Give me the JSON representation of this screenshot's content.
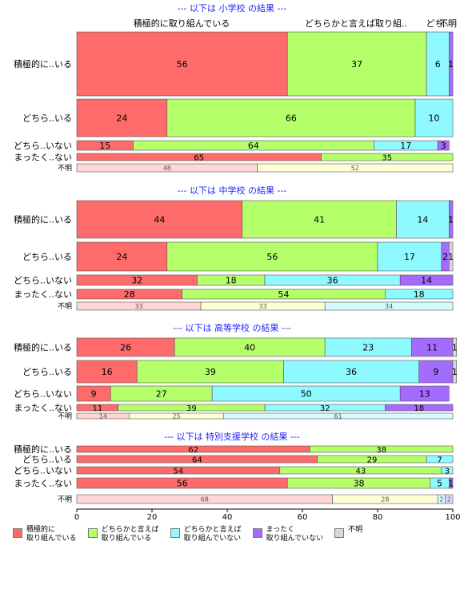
{
  "chart_data": {
    "type": "bar",
    "orientation": "horizontal",
    "stacked": true,
    "xlim": [
      0,
      100
    ],
    "x_ticks": [
      0,
      20,
      40,
      60,
      80,
      100
    ],
    "top_labels": [
      "積極的に取り組んでいる",
      "どちらかと言えば取り組..",
      "どち..",
      "不明"
    ],
    "legend": [
      {
        "label": "積極的に\n取り組んでいる",
        "color": "#ff6b6b"
      },
      {
        "label": "どちらかと言えば\n取り組んでいる",
        "color": "#b5ff6b"
      },
      {
        "label": "どちらかと言えば\n取り組んでいない",
        "color": "#8ef9ff"
      },
      {
        "label": "まったく\n取り組んでいない",
        "color": "#a46bff"
      },
      {
        "label": "不明",
        "color": "#d9d9d9"
      }
    ],
    "series_colors": [
      "#ff6b6b",
      "#b5ff6b",
      "#8ef9ff",
      "#a46bff",
      "#d9d9d9"
    ],
    "unknown_colors": [
      "#ffd6d6",
      "#ffffd4",
      "#d6fbff",
      "#e8d6ff",
      "#eeeeee"
    ],
    "panels": [
      {
        "title": "--- 以下は 小学校 の結果 ---",
        "rows": [
          {
            "label": "積極的に..いる",
            "values": [
              56,
              37,
              6,
              1
            ]
          },
          {
            "label": "どちら..いる",
            "values": [
              24,
              66,
              10
            ]
          },
          {
            "label": "どちら..いない",
            "values": [
              15,
              64,
              17,
              3
            ]
          },
          {
            "label": "まったく..ない",
            "values": [
              65,
              35
            ]
          },
          {
            "label": "不明",
            "values": [
              48,
              52
            ]
          }
        ]
      },
      {
        "title": "--- 以下は 中学校 の結果 ---",
        "rows": [
          {
            "label": "積極的に..いる",
            "values": [
              44,
              41,
              14,
              1
            ]
          },
          {
            "label": "どちら..いる",
            "values": [
              24,
              56,
              17,
              2,
              1
            ]
          },
          {
            "label": "どちら..いない",
            "values": [
              32,
              18,
              36,
              14
            ]
          },
          {
            "label": "まったく..ない",
            "values": [
              28,
              54,
              18
            ]
          },
          {
            "label": "不明",
            "values": [
              33,
              33,
              34
            ]
          }
        ]
      },
      {
        "title": "--- 以下は 高等学校 の結果 ---",
        "rows": [
          {
            "label": "積極的に..いる",
            "values": [
              26,
              40,
              23,
              11,
              1
            ]
          },
          {
            "label": "どちら..いる",
            "values": [
              16,
              39,
              36,
              9,
              1
            ]
          },
          {
            "label": "どちら..いない",
            "values": [
              9,
              27,
              50,
              13
            ]
          },
          {
            "label": "まったく..ない",
            "values": [
              11,
              39,
              32,
              18
            ]
          },
          {
            "label": "不明",
            "values": [
              14,
              25,
              61
            ]
          }
        ]
      },
      {
        "title": "--- 以下は 特別支援学校 の結果 ---",
        "rows": [
          {
            "label": "積極的に..いる",
            "values": [
              62,
              38
            ]
          },
          {
            "label": "どちら..いる",
            "values": [
              64,
              29,
              7
            ]
          },
          {
            "label": "どちら..いない",
            "values": [
              54,
              43,
              3
            ]
          },
          {
            "label": "まったく..ない",
            "values": [
              56,
              38,
              5,
              1
            ]
          },
          {
            "label": "不明",
            "values": [
              68,
              28,
              2,
              2
            ]
          }
        ]
      }
    ]
  }
}
